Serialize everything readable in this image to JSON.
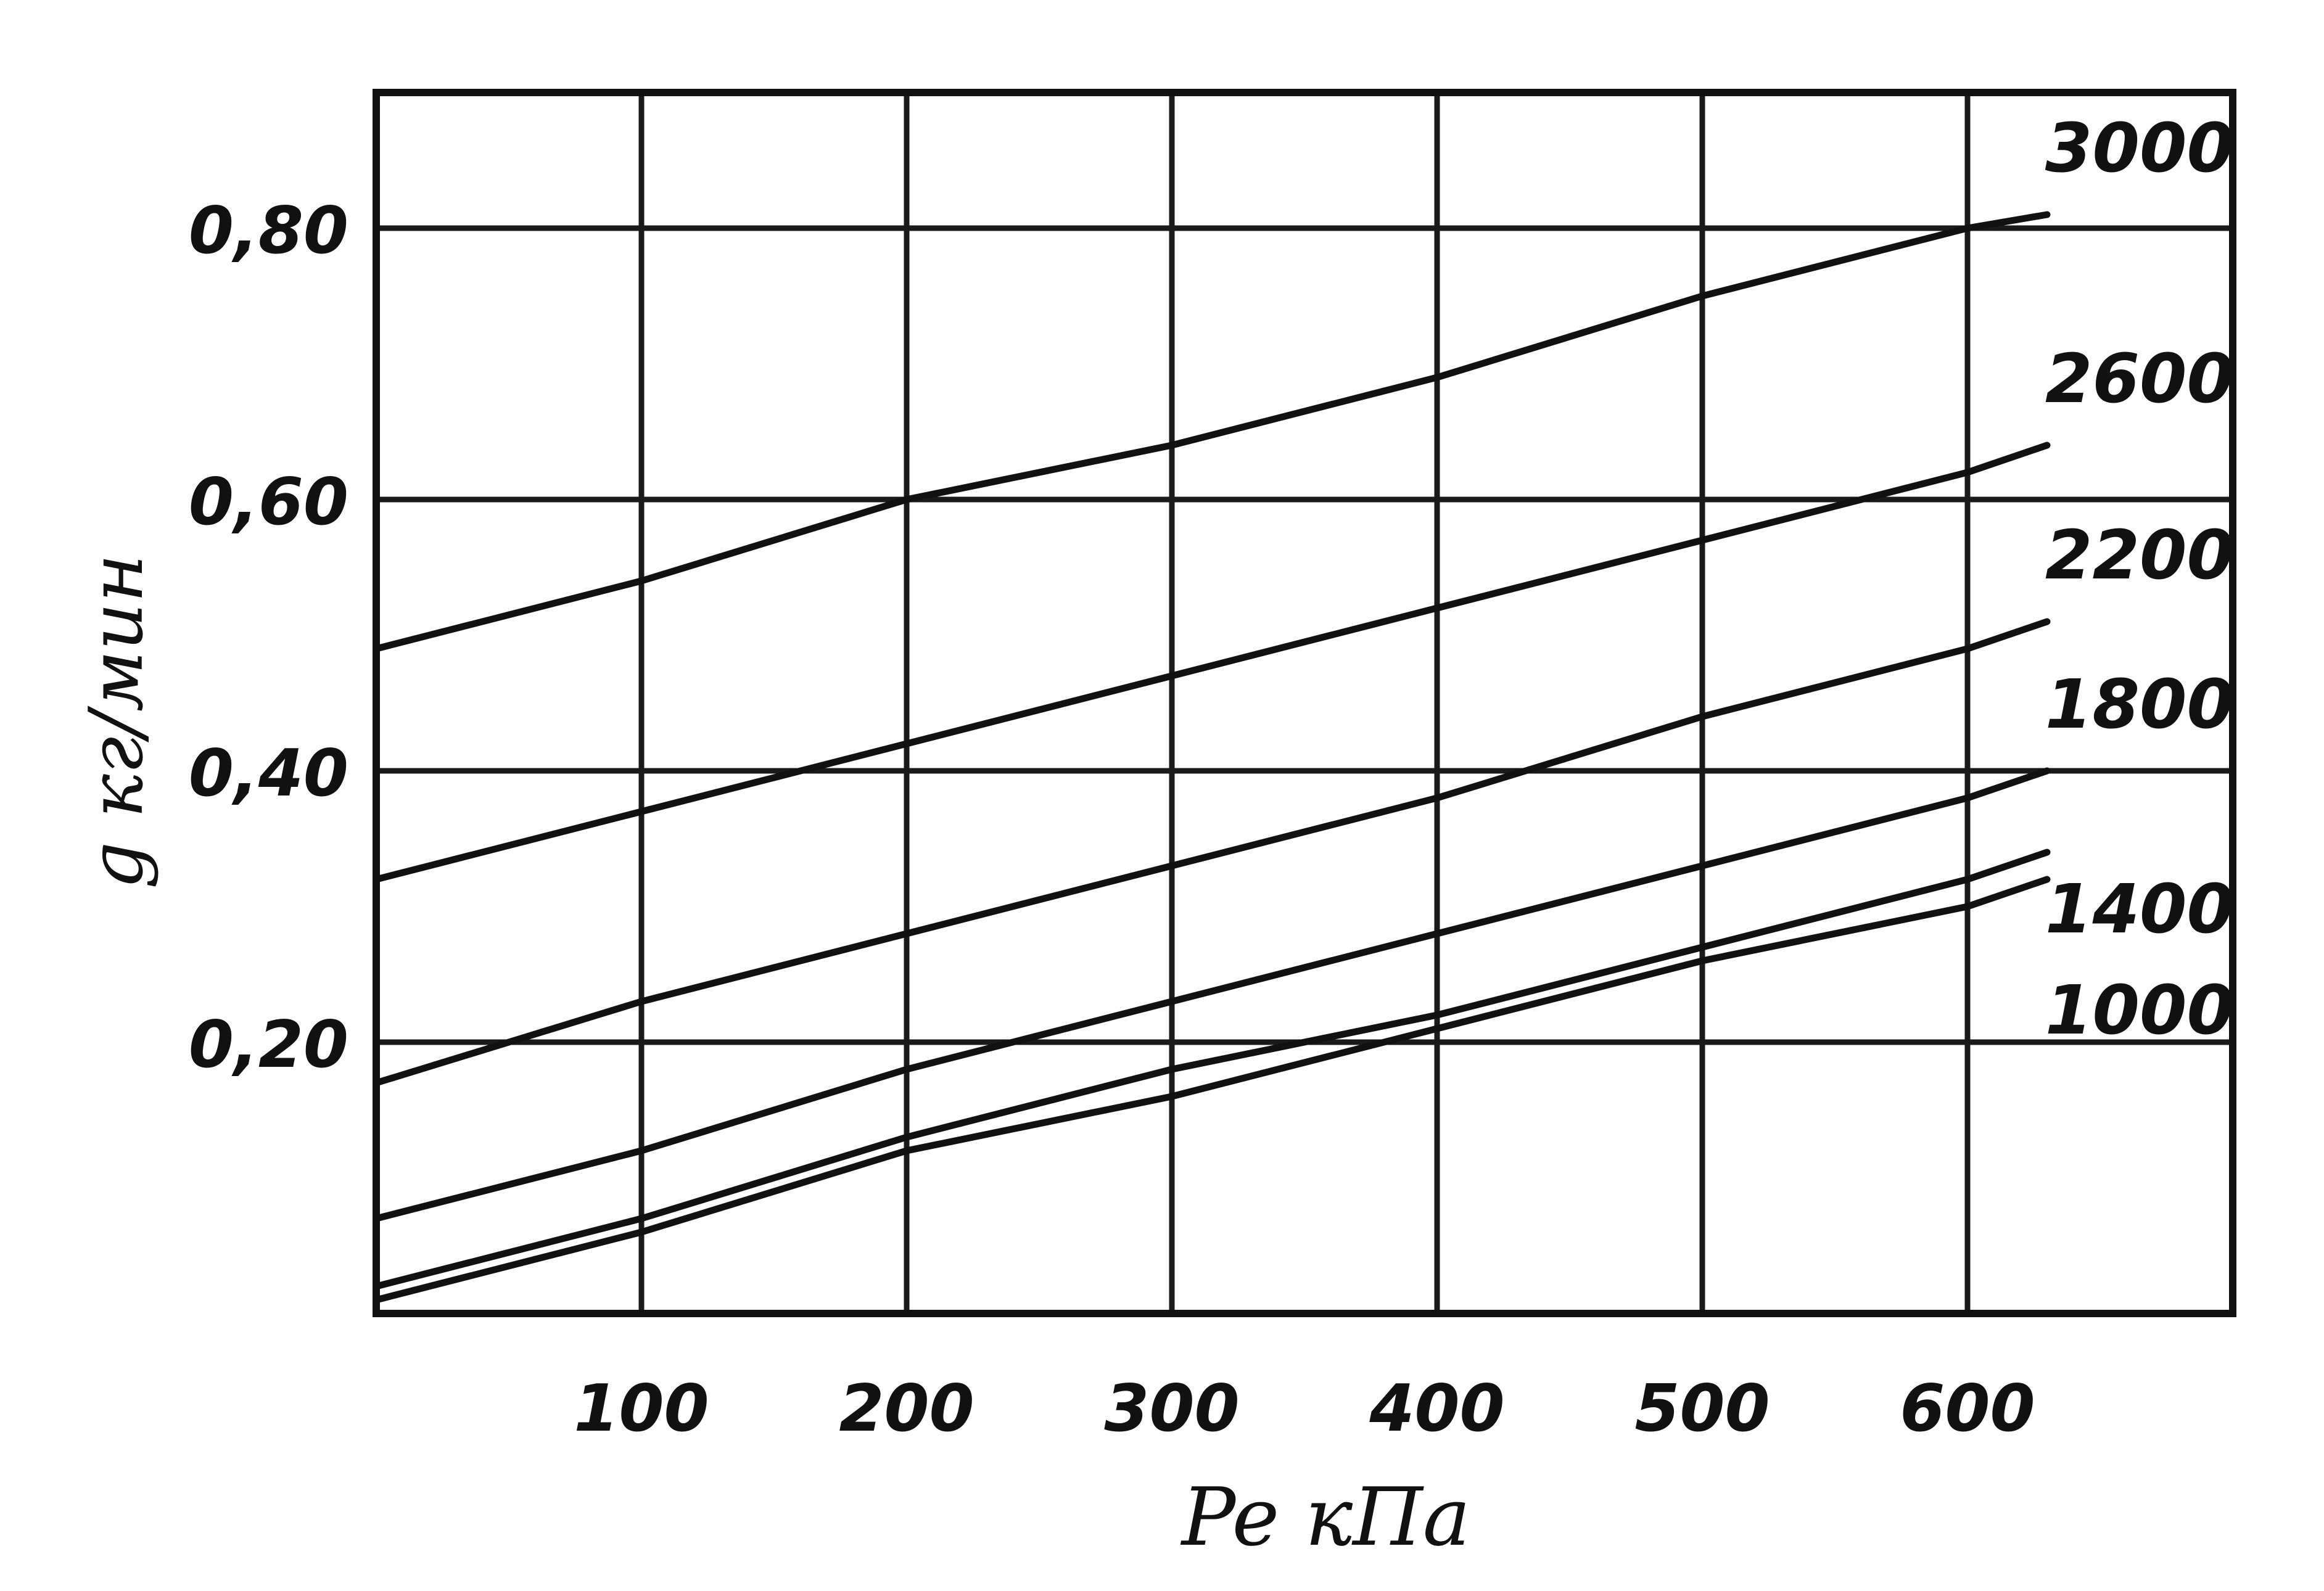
{
  "chart_data": {
    "type": "line",
    "title": "",
    "xlabel": "Pe кПа",
    "ylabel": "g кг/мин",
    "xlim": [
      0,
      700
    ],
    "ylim": [
      0,
      0.9
    ],
    "x_ticks": [
      {
        "value": 100,
        "label": "100"
      },
      {
        "value": 200,
        "label": "200"
      },
      {
        "value": 300,
        "label": "300"
      },
      {
        "value": 400,
        "label": "400"
      },
      {
        "value": 500,
        "label": "500"
      },
      {
        "value": 600,
        "label": "600"
      }
    ],
    "y_ticks": [
      {
        "value": 0.2,
        "label": "0,20"
      },
      {
        "value": 0.4,
        "label": "0,40"
      },
      {
        "value": 0.6,
        "label": "0,60"
      },
      {
        "value": 0.8,
        "label": "0,80"
      }
    ],
    "grid": true,
    "series": [
      {
        "name": "3000",
        "x": [
          0,
          100,
          200,
          300,
          400,
          500,
          600,
          630
        ],
        "y": [
          0.49,
          0.54,
          0.6,
          0.64,
          0.69,
          0.75,
          0.8,
          0.81
        ]
      },
      {
        "name": "2600",
        "x": [
          0,
          100,
          200,
          300,
          400,
          500,
          600,
          630
        ],
        "y": [
          0.32,
          0.37,
          0.42,
          0.47,
          0.52,
          0.57,
          0.62,
          0.64
        ]
      },
      {
        "name": "2200",
        "x": [
          0,
          100,
          200,
          300,
          400,
          500,
          600,
          630
        ],
        "y": [
          0.17,
          0.23,
          0.28,
          0.33,
          0.38,
          0.44,
          0.49,
          0.51
        ]
      },
      {
        "name": "1800",
        "x": [
          0,
          100,
          200,
          300,
          400,
          500,
          600,
          630
        ],
        "y": [
          0.07,
          0.12,
          0.18,
          0.23,
          0.28,
          0.33,
          0.38,
          0.4
        ]
      },
      {
        "name": "1400",
        "x": [
          0,
          100,
          200,
          300,
          400,
          500,
          600,
          630
        ],
        "y": [
          0.02,
          0.07,
          0.13,
          0.18,
          0.22,
          0.27,
          0.32,
          0.34
        ]
      },
      {
        "name": "1000",
        "x": [
          0,
          100,
          200,
          300,
          400,
          500,
          600,
          630
        ],
        "y": [
          0.01,
          0.06,
          0.12,
          0.16,
          0.21,
          0.26,
          0.3,
          0.32
        ]
      }
    ]
  }
}
